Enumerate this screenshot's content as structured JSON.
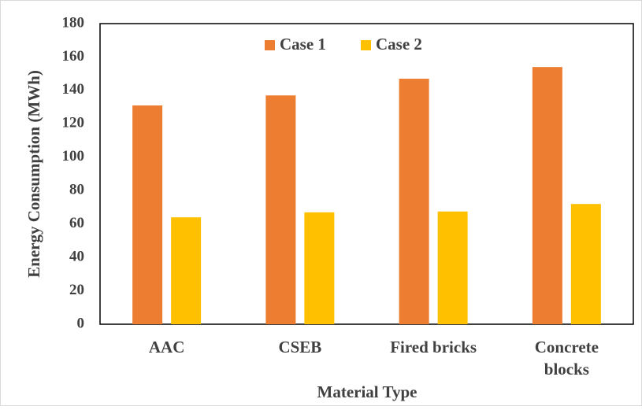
{
  "chart_data": {
    "type": "bar",
    "title": "",
    "xlabel": "Material Type",
    "ylabel": "Energy Consumption (MWh)",
    "categories": [
      "AAC",
      "CSEB",
      "Fired bricks",
      "Concrete blocks"
    ],
    "category_lines": [
      [
        "AAC"
      ],
      [
        "CSEB"
      ],
      [
        "Fired bricks"
      ],
      [
        "Concrete",
        "blocks"
      ]
    ],
    "series": [
      {
        "name": "Case 1",
        "color": "#ED7D31",
        "values": [
          131,
          137,
          147,
          154
        ]
      },
      {
        "name": "Case 2",
        "color": "#FFC000",
        "values": [
          64,
          67,
          67.5,
          72
        ]
      }
    ],
    "ylim": [
      0,
      180
    ],
    "yticks": [
      "0",
      "20",
      "40",
      "60",
      "80",
      "100",
      "120",
      "140",
      "160",
      "180"
    ],
    "grid": false,
    "legend_position": "top-center"
  }
}
